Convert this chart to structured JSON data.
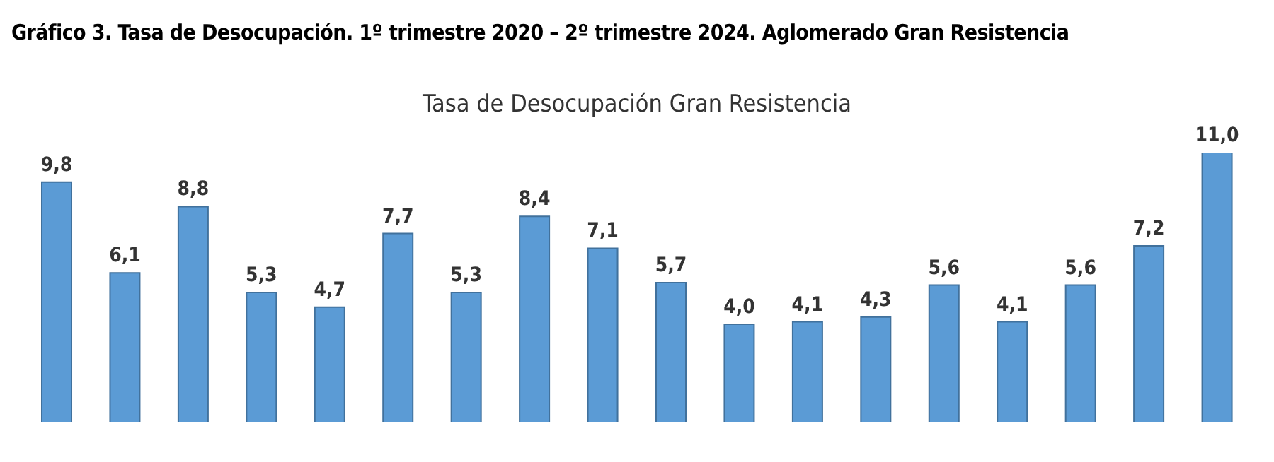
{
  "chart_data": {
    "type": "bar",
    "title": "Gráfico 3. Tasa de Desocupación. 1º trimestre 2020 – 2º trimestre 2024. Aglomerado Gran Resistencia",
    "subtitle": "Tasa de Desocupación Gran Resistencia",
    "categories": [
      null,
      null,
      null,
      null,
      null,
      null,
      null,
      null,
      null,
      null,
      null,
      null,
      null,
      null,
      null,
      null,
      null,
      null
    ],
    "values": [
      9.8,
      6.1,
      8.8,
      5.3,
      4.7,
      7.7,
      5.3,
      8.4,
      7.1,
      5.7,
      4.0,
      4.1,
      4.3,
      5.6,
      4.1,
      5.6,
      7.2,
      11.0
    ],
    "value_labels": [
      "9,8",
      "6,1",
      "8,8",
      "5,3",
      "4,7",
      "7,7",
      "5,3",
      "8,4",
      "7,1",
      "5,7",
      "4,0",
      "4,1",
      "4,3",
      "5,6",
      "4,1",
      "5,6",
      "7,2",
      "11,0"
    ],
    "color": "#5b9bd5",
    "grid": false,
    "legend": false
  }
}
